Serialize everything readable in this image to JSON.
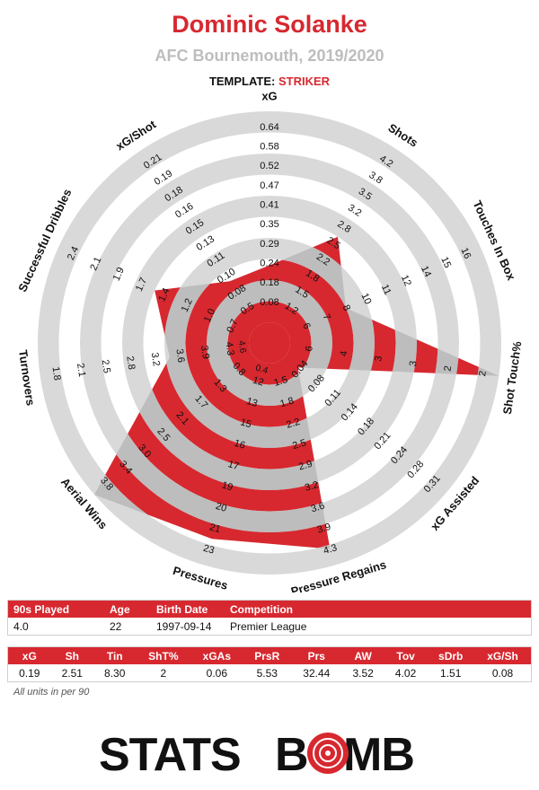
{
  "header": {
    "player_name": "Dominic Solanke",
    "team_season": "AFC Bournemouth, 2019/2020",
    "template_label": "TEMPLATE:",
    "template_value": "STRIKER"
  },
  "chart_data": {
    "type": "radar",
    "title": "Dominic Solanke",
    "rings": 5,
    "axes": [
      {
        "label": "xG",
        "ticks": [
          "0.08",
          "0.18",
          "0.24",
          "0.29",
          "0.35",
          "0.41",
          "0.47",
          "0.52",
          "0.58",
          "0.64"
        ],
        "value": 0.19
      },
      {
        "label": "Shots",
        "ticks": [
          "1.2",
          "1.5",
          "1.8",
          "2.2",
          "2.5",
          "2.8",
          "3.2",
          "3.5",
          "3.8",
          "4.2"
        ],
        "value": 2.51
      },
      {
        "label": "Touches In Box",
        "ticks": [
          "6",
          "7",
          "8",
          "10",
          "11",
          "12",
          "14",
          "15",
          "16"
        ],
        "value": 8.3
      },
      {
        "label": "Shot Touch%",
        "ticks": [
          "6",
          "4",
          "3",
          "3",
          "2",
          "2"
        ],
        "value": 2
      },
      {
        "label": "xG Assisted",
        "ticks": [
          "0.04",
          "0.08",
          "0.11",
          "0.14",
          "0.18",
          "0.21",
          "0.24",
          "0.28",
          "0.31"
        ],
        "value": 0.06
      },
      {
        "label": "Pressure Regains",
        "ticks": [
          "1.5",
          "1.8",
          "2.2",
          "2.5",
          "2.9",
          "3.2",
          "3.6",
          "3.9",
          "4.3"
        ],
        "value": 5.53
      },
      {
        "label": "Pressures",
        "ticks": [
          "12",
          "13",
          "15",
          "16",
          "17",
          "19",
          "20",
          "21",
          "23"
        ],
        "value": 32.44
      },
      {
        "label": "Aerial Wins",
        "ticks": [
          "0.8",
          "1.3",
          "1.7",
          "2.1",
          "2.5",
          "3.0",
          "3.4",
          "3.8"
        ],
        "value": 3.52
      },
      {
        "label": "Turnovers",
        "ticks": [
          "4.3",
          "3.9",
          "3.6",
          "3.2",
          "2.8",
          "2.5",
          "2.1",
          "1.8"
        ],
        "value": 4.02
      },
      {
        "label": "Successful Dribbles",
        "ticks": [
          "0.7",
          "1.0",
          "1.2",
          "1.4",
          "1.7",
          "1.9",
          "2.1",
          "2.4"
        ],
        "value": 1.51
      },
      {
        "label": "xG/Shot",
        "ticks": [
          "0.5",
          "0.08",
          "0.10",
          "0.11",
          "0.13",
          "0.15",
          "0.16",
          "0.18",
          "0.19",
          "0.21"
        ],
        "value": 0.08
      }
    ],
    "inner_ticks": {
      "Pressures": "0.4",
      "Turnovers": "4.6"
    },
    "shape_fractions": [
      0.27,
      0.5,
      0.3,
      1.0,
      0.08,
      0.92,
      0.87,
      1.0,
      0.38,
      0.5,
      0.25
    ],
    "colors": {
      "fill": "#d7282f",
      "ring_grey": "#d9d9d9",
      "ring_white": "#ffffff",
      "shape_grey": "#bdbdbd"
    }
  },
  "player_table": {
    "headers": [
      "90s Played",
      "Age",
      "Birth Date",
      "Competition"
    ],
    "values": [
      "4.0",
      "22",
      "1997-09-14",
      "Premier League"
    ]
  },
  "stats_table": {
    "headers": [
      "xG",
      "Sh",
      "Tin",
      "ShT%",
      "xGAs",
      "PrsR",
      "Prs",
      "AW",
      "Tov",
      "sDrb",
      "xG/Sh"
    ],
    "values": [
      "0.19",
      "2.51",
      "8.30",
      "2",
      "0.06",
      "5.53",
      "32.44",
      "3.52",
      "4.02",
      "1.51",
      "0.08"
    ]
  },
  "footnote": "All units in per 90",
  "logo": {
    "left": "STATS",
    "right": "BOMB"
  }
}
